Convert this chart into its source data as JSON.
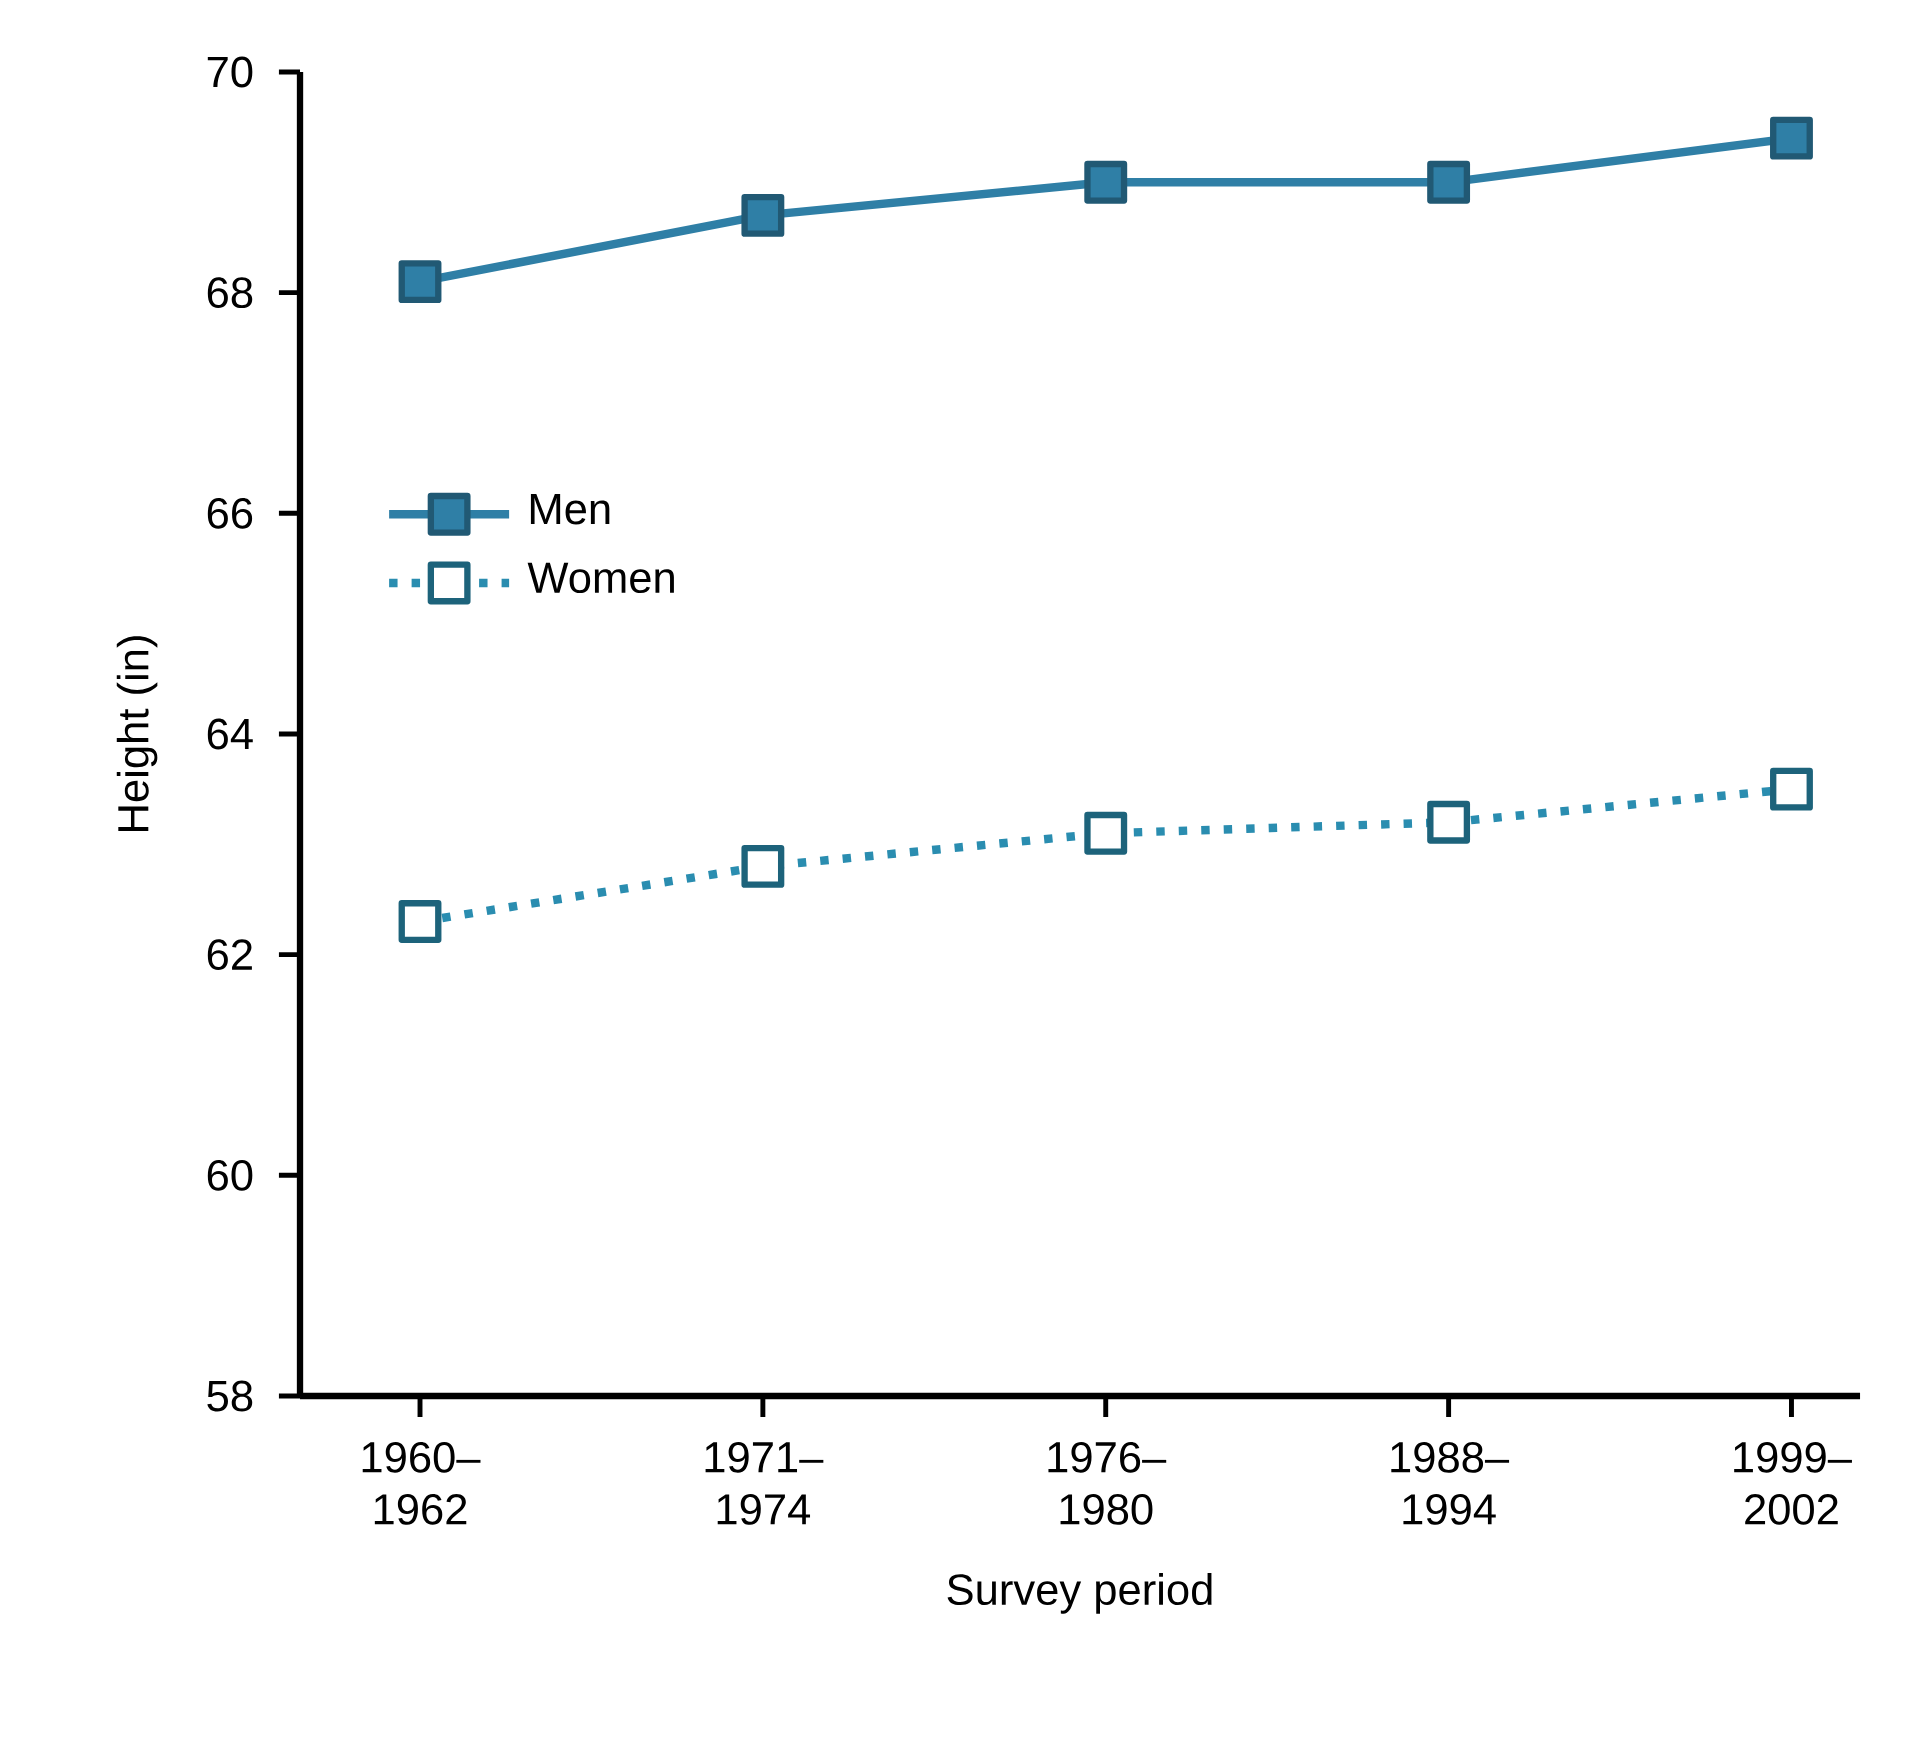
{
  "chart_data": {
    "type": "line",
    "xlabel": "Survey period",
    "ylabel": "Height (in)",
    "categories": [
      "1960–1962",
      "1971–1974",
      "1976–1980",
      "1988–1994",
      "1999–2002"
    ],
    "ylim": [
      58,
      70
    ],
    "yticks": [
      58,
      60,
      62,
      64,
      66,
      68,
      70
    ],
    "series": [
      {
        "name": "Men",
        "color": "#2f7fa6",
        "line_style": "solid",
        "values": [
          68.1,
          68.7,
          69.0,
          69.0,
          69.4
        ]
      },
      {
        "name": "Women",
        "color": "#2a8db0",
        "line_style": "dotted",
        "values": [
          62.3,
          62.8,
          63.1,
          63.2,
          63.5
        ]
      }
    ],
    "marker": "square",
    "legend": "left",
    "grid": false
  }
}
